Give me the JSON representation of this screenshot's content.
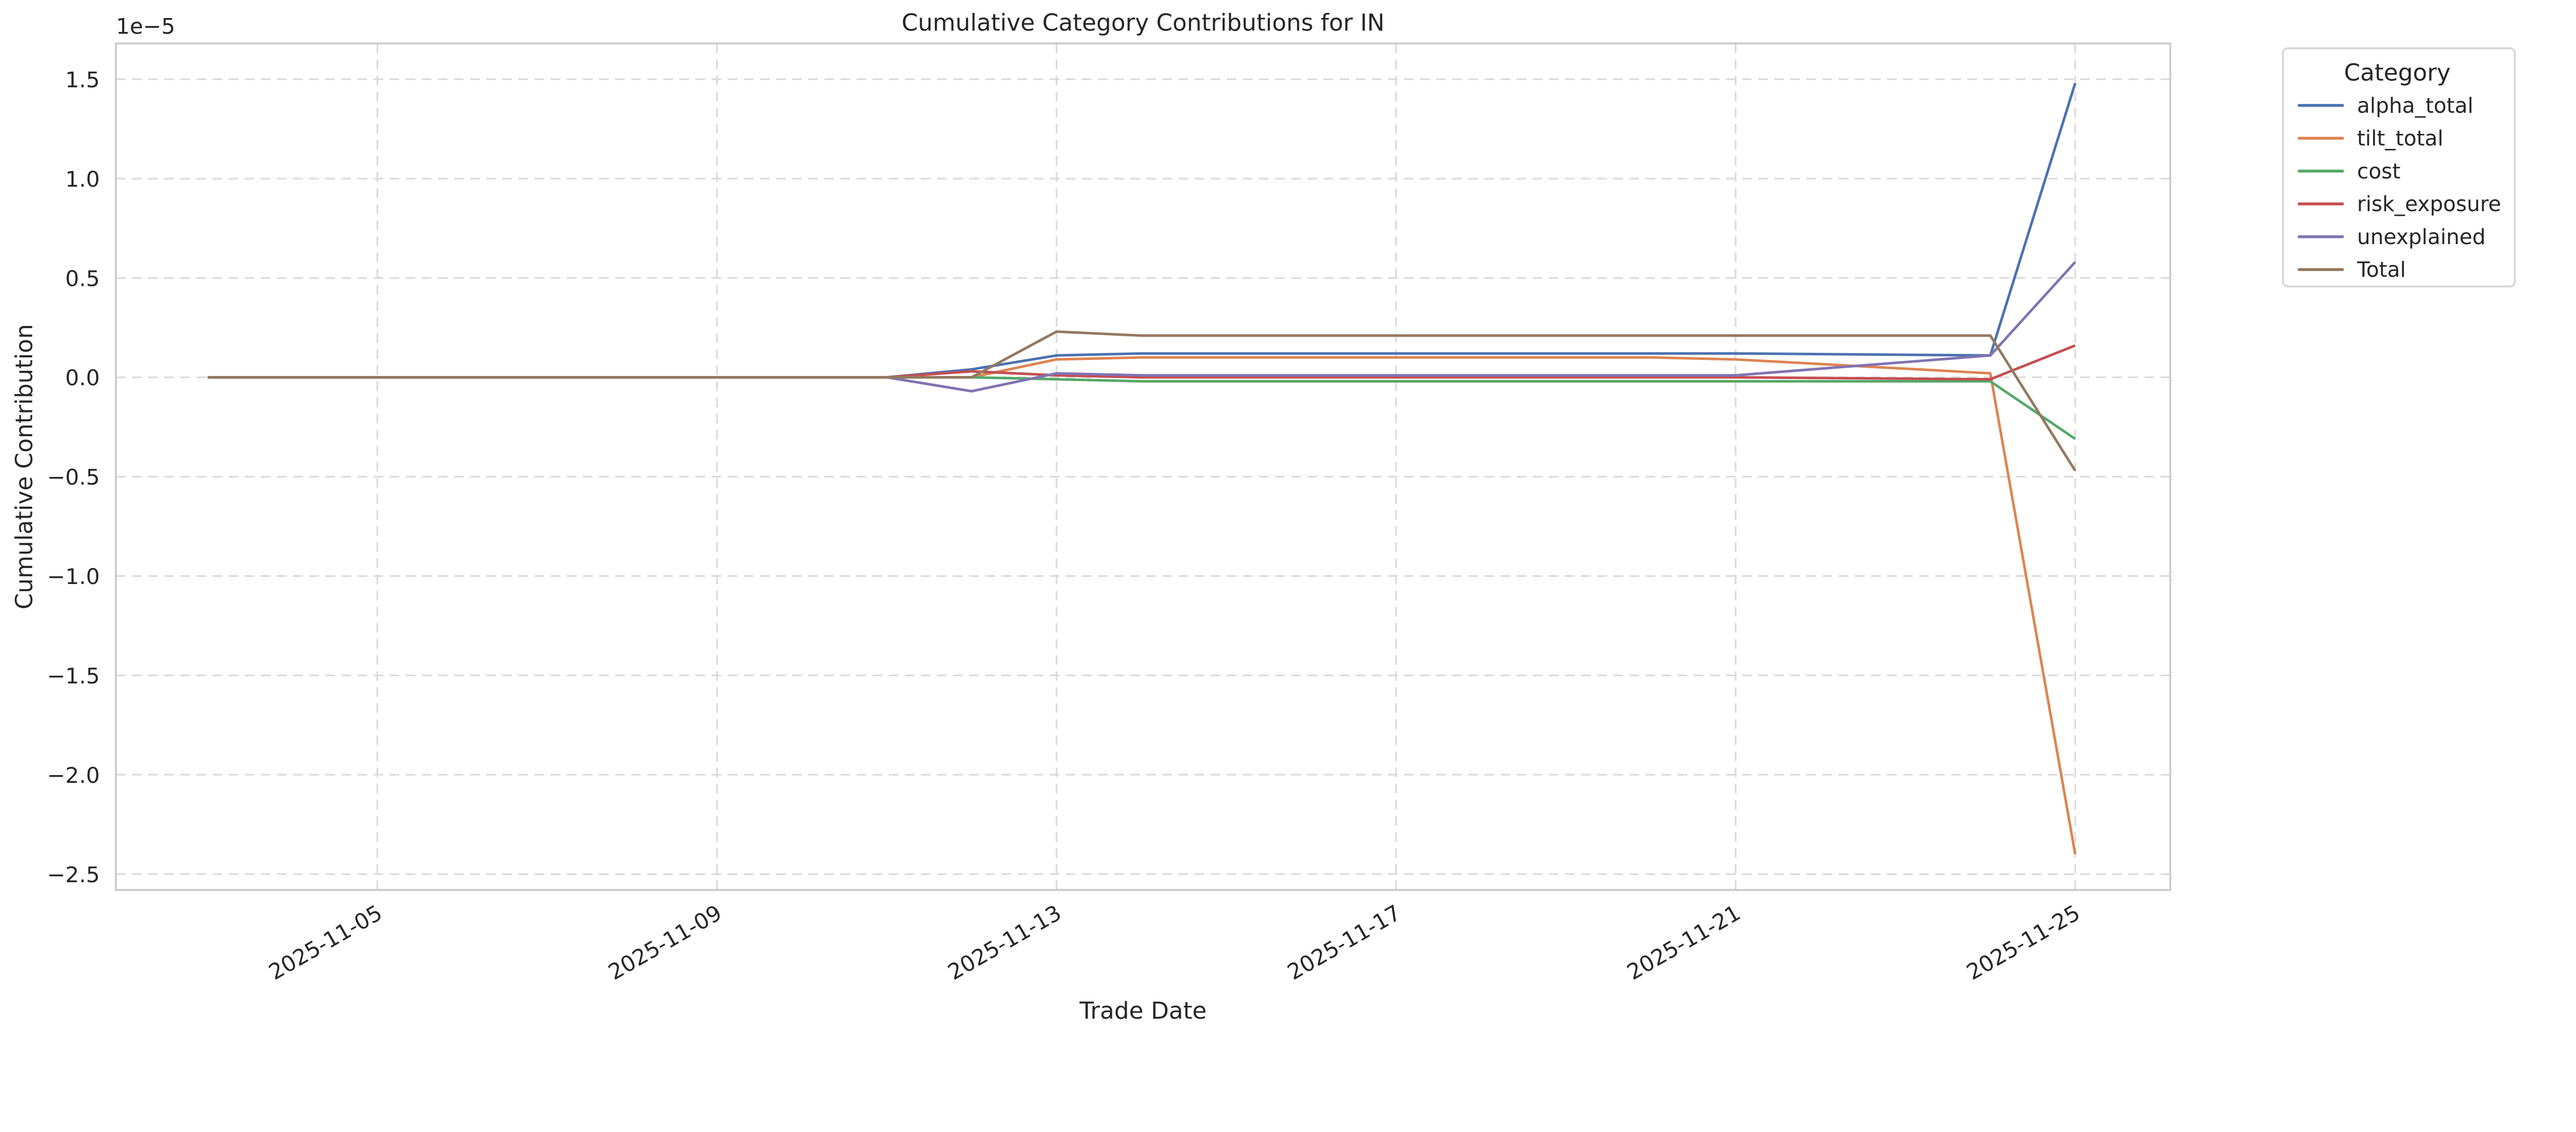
{
  "chart_data": {
    "type": "line",
    "title": "Cumulative Category Contributions for IN",
    "xlabel": "Trade Date",
    "ylabel": "Cumulative Contribution",
    "y_scale_label": "1e−5",
    "y_multiplier": 1e-05,
    "ylim": [
      -2.58,
      1.68
    ],
    "xlim": [
      "2025-11-02",
      "2025-11-26"
    ],
    "grid": true,
    "x_ticks": [
      "2025-11-05",
      "2025-11-09",
      "2025-11-13",
      "2025-11-17",
      "2025-11-21",
      "2025-11-25"
    ],
    "y_ticks": [
      1.5,
      1.0,
      0.5,
      0.0,
      -0.5,
      -1.0,
      -1.5,
      -2.0,
      -2.5
    ],
    "y_tick_labels": [
      "1.5",
      "1.0",
      "0.5",
      "0.0",
      "−0.5",
      "−1.0",
      "−1.5",
      "−2.0",
      "−2.5"
    ],
    "legend": {
      "title": "Category",
      "placement": "outside-top-right"
    },
    "x": [
      "2025-11-03",
      "2025-11-04",
      "2025-11-05",
      "2025-11-06",
      "2025-11-07",
      "2025-11-10",
      "2025-11-11",
      "2025-11-12",
      "2025-11-13",
      "2025-11-14",
      "2025-11-17",
      "2025-11-18",
      "2025-11-19",
      "2025-11-20",
      "2025-11-21",
      "2025-11-24",
      "2025-11-25"
    ],
    "series": [
      {
        "name": "alpha_total",
        "color": "#4c72b0",
        "values": [
          0,
          0,
          0,
          0,
          0,
          0,
          0,
          0.04,
          0.11,
          0.12,
          0.12,
          0.12,
          0.12,
          0.12,
          0.12,
          0.11,
          1.48
        ]
      },
      {
        "name": "tilt_total",
        "color": "#dd8452",
        "values": [
          0,
          0,
          0,
          0,
          0,
          0,
          0,
          0.0,
          0.09,
          0.1,
          0.1,
          0.1,
          0.1,
          0.1,
          0.09,
          0.02,
          -2.4
        ]
      },
      {
        "name": "cost",
        "color": "#55a868",
        "values": [
          0,
          0,
          0,
          0,
          0,
          0,
          0,
          0.0,
          -0.01,
          -0.02,
          -0.02,
          -0.02,
          -0.02,
          -0.02,
          -0.02,
          -0.02,
          -0.31
        ]
      },
      {
        "name": "risk_exposure",
        "color": "#c44e52",
        "values": [
          0,
          0,
          0,
          0,
          0,
          0,
          0,
          0.03,
          0.01,
          0.0,
          0.0,
          0.0,
          0.0,
          0.0,
          0.0,
          -0.01,
          0.16
        ]
      },
      {
        "name": "unexplained",
        "color": "#8172b3",
        "values": [
          0,
          0,
          0,
          0,
          0,
          0,
          0,
          -0.07,
          0.02,
          0.01,
          0.01,
          0.01,
          0.01,
          0.01,
          0.01,
          0.11,
          0.58
        ]
      },
      {
        "name": "Total",
        "color": "#937860",
        "values": [
          0,
          0,
          0,
          0,
          0,
          0,
          0,
          0.0,
          0.23,
          0.21,
          0.21,
          0.21,
          0.21,
          0.21,
          0.21,
          0.21,
          -0.47
        ]
      }
    ]
  }
}
